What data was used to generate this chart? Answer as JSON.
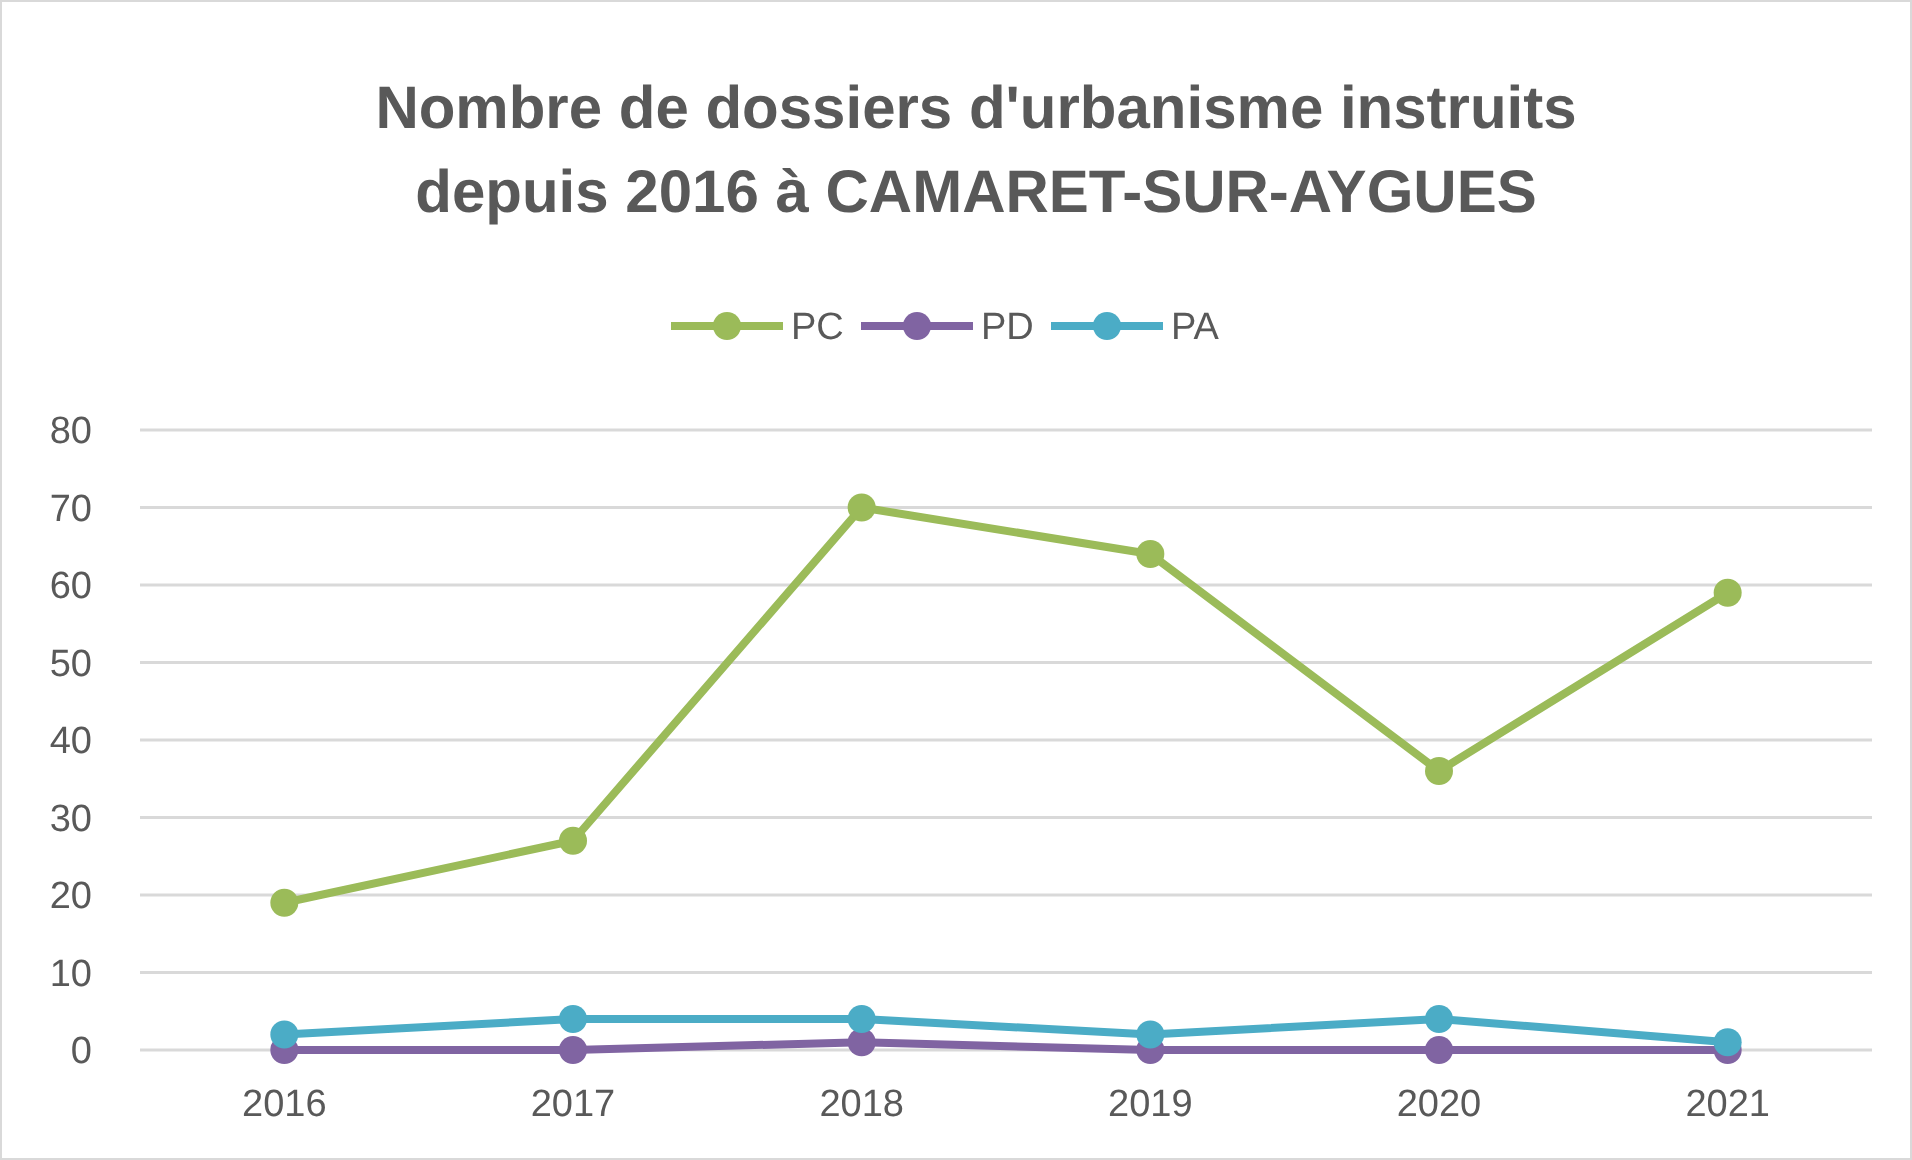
{
  "chart_data": {
    "type": "line",
    "title": "Nombre de dossiers d'urbanisme instruits depuis 2016 à CAMARET-SUR-AYGUES",
    "categories": [
      "2016",
      "2017",
      "2018",
      "2019",
      "2020",
      "2021"
    ],
    "series": [
      {
        "name": "PC",
        "color": "#9bbb59",
        "values": [
          19,
          27,
          70,
          64,
          36,
          59
        ]
      },
      {
        "name": "PD",
        "color": "#8064a2",
        "values": [
          0,
          0,
          1,
          0,
          0,
          0
        ]
      },
      {
        "name": "PA",
        "color": "#4bacc6",
        "values": [
          2,
          4,
          4,
          2,
          4,
          1
        ]
      }
    ],
    "ylim": [
      0,
      80
    ],
    "yticks": [
      0,
      10,
      20,
      30,
      40,
      50,
      60,
      70,
      80
    ],
    "grid": "y",
    "legend": "top",
    "marker": "circle",
    "line_style": "solid"
  }
}
